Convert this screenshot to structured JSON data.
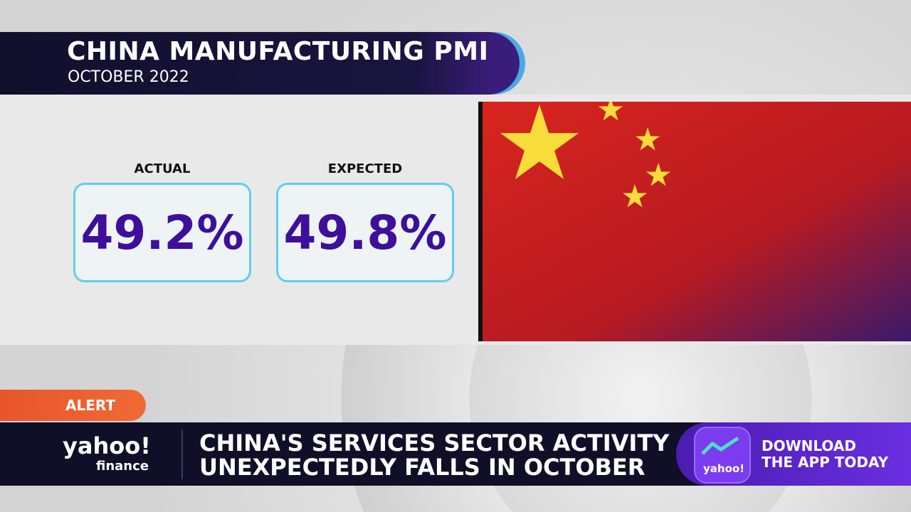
{
  "header": {
    "title": "CHINA MANUFACTURING PMI",
    "subtitle": "OCTOBER 2022"
  },
  "stats": [
    {
      "label": "ACTUAL",
      "value": "49.2%"
    },
    {
      "label": "EXPECTED",
      "value": "49.8%"
    }
  ],
  "alert": "ALERT",
  "logo": {
    "brand": "yahoo!",
    "product": "finance"
  },
  "headline": [
    "CHINA'S SERVICES SECTOR ACTIVITY",
    "UNEXPECTEDLY FALLS IN OCTOBER"
  ],
  "promo": {
    "icon_text": "yahoo!",
    "lines": [
      "DOWNLOAD",
      "THE APP TODAY"
    ]
  }
}
